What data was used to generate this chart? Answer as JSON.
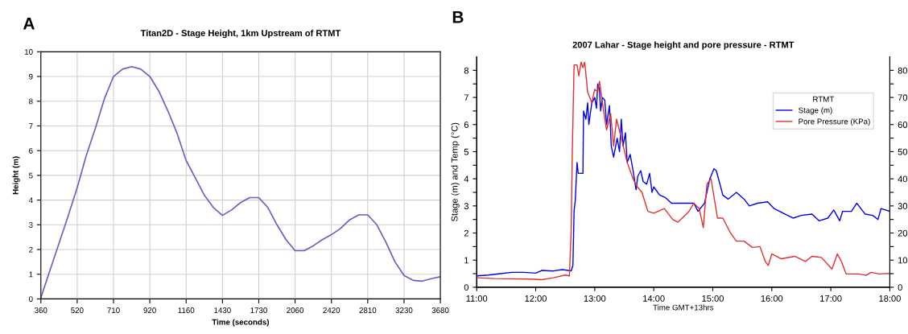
{
  "chart_data": [
    {
      "type": "line",
      "title": "Titan2D - Stage Height, 1km Upstream of RTMT",
      "xlabel": "Time (seconds)",
      "ylabel": "Height (m)",
      "annotations": [
        "A"
      ],
      "categories": [
        "360",
        null,
        null,
        null,
        "520",
        null,
        null,
        null,
        "710",
        null,
        null,
        null,
        "920",
        null,
        null,
        null,
        "1160",
        null,
        null,
        null,
        "1430",
        null,
        null,
        null,
        "1730",
        null,
        null,
        null,
        "2060",
        null,
        null,
        null,
        "2420",
        null,
        null,
        null,
        "2810",
        null,
        null,
        null,
        "3230",
        null,
        null,
        null,
        "3680"
      ],
      "series": [
        {
          "color": "#6262c4",
          "values": [
            0.05,
            1.15,
            2.25,
            3.35,
            4.5,
            5.8,
            6.9,
            8.1,
            9.0,
            9.3,
            9.4,
            9.3,
            9.0,
            8.4,
            7.6,
            6.7,
            5.6,
            4.9,
            4.2,
            3.7,
            3.38,
            3.6,
            3.9,
            4.1,
            4.1,
            3.7,
            3.0,
            2.4,
            1.95,
            1.95,
            2.15,
            2.4,
            2.6,
            2.85,
            3.2,
            3.4,
            3.4,
            3.0,
            2.3,
            1.5,
            0.95,
            0.75,
            0.72,
            0.82,
            0.9
          ]
        }
      ],
      "ylim": [
        0,
        10
      ],
      "yticks": [
        0,
        1,
        2,
        3,
        4,
        5,
        6,
        7,
        8,
        9,
        10
      ],
      "grid": true,
      "marker": "none"
    },
    {
      "type": "line",
      "title": "2007 Lahar - Stage height and pore pressure - RTMT",
      "xlabel": "Time GMT+13hrs",
      "ylabel": "Stage (m) and Temp (°C)",
      "annotations": [
        "B"
      ],
      "legend_title": "RTMT",
      "legend": "top right",
      "series": [
        {
          "name": "Stage (m)",
          "color": "#0000ee",
          "x": [
            11.0,
            11.2,
            11.4,
            11.6,
            11.8,
            12.0,
            12.1,
            12.3,
            12.45,
            12.55,
            12.6,
            12.63,
            12.65,
            12.67,
            12.7,
            12.72,
            12.8,
            12.81,
            12.85,
            12.88,
            12.9,
            12.95,
            13.0,
            13.03,
            13.05,
            13.08,
            13.1,
            13.13,
            13.17,
            13.2,
            13.25,
            13.28,
            13.32,
            13.38,
            13.42,
            13.45,
            13.48,
            13.52,
            13.55,
            13.6,
            13.65,
            13.7,
            13.73,
            13.78,
            13.82,
            13.88,
            13.93,
            13.97,
            14.0,
            14.1,
            14.2,
            14.3,
            14.4,
            14.5,
            14.68,
            14.75,
            14.86,
            14.95,
            15.02,
            15.06,
            15.17,
            15.26,
            15.4,
            15.53,
            15.62,
            15.76,
            15.93,
            16.04,
            16.22,
            16.36,
            16.5,
            16.68,
            16.8,
            16.95,
            17.05,
            17.15,
            17.2,
            17.35,
            17.44,
            17.58,
            17.71,
            17.8,
            17.85,
            18.0
          ],
          "values": [
            0.42,
            0.45,
            0.5,
            0.55,
            0.55,
            0.52,
            0.62,
            0.6,
            0.65,
            0.62,
            0.6,
            0.8,
            2.8,
            3.2,
            4.6,
            4.2,
            4.2,
            6.5,
            6.2,
            6.8,
            6.0,
            6.8,
            7.0,
            6.6,
            7.5,
            7.3,
            6.5,
            7.0,
            6.9,
            6.0,
            6.7,
            5.2,
            4.8,
            5.5,
            5.0,
            6.2,
            5.2,
            5.7,
            4.6,
            4.9,
            4.3,
            3.6,
            4.1,
            4.3,
            3.9,
            3.8,
            4.2,
            3.5,
            3.7,
            3.4,
            3.3,
            3.1,
            3.1,
            3.1,
            3.1,
            2.8,
            3.1,
            4.0,
            4.37,
            4.3,
            3.4,
            3.25,
            3.5,
            3.25,
            3.0,
            3.1,
            3.15,
            2.9,
            2.7,
            2.55,
            2.65,
            2.7,
            2.45,
            2.55,
            2.85,
            2.45,
            2.8,
            2.8,
            3.1,
            2.7,
            2.65,
            2.5,
            2.9,
            2.8
          ]
        },
        {
          "name": "Pore Pressure (KPa)",
          "color": "#e03030",
          "axis": "y2",
          "x": [
            11.0,
            11.3,
            11.9,
            12.1,
            12.3,
            12.5,
            12.57,
            12.6,
            12.62,
            12.65,
            12.7,
            12.73,
            12.77,
            12.8,
            12.83,
            12.88,
            12.95,
            13.0,
            13.05,
            13.08,
            13.15,
            13.2,
            13.27,
            13.32,
            13.37,
            13.45,
            13.55,
            13.65,
            13.72,
            13.8,
            13.9,
            14.0,
            14.18,
            14.32,
            14.41,
            14.59,
            14.68,
            14.77,
            14.84,
            14.9,
            14.97,
            15.08,
            15.17,
            15.3,
            15.4,
            15.53,
            15.67,
            15.8,
            15.89,
            15.94,
            16.0,
            16.16,
            16.39,
            16.57,
            16.68,
            16.84,
            17.02,
            17.11,
            17.18,
            17.26,
            17.47,
            17.6,
            17.68,
            17.82,
            18.0
          ],
          "values": [
            3.5,
            3.2,
            3.0,
            2.8,
            3.5,
            4.5,
            4.2,
            20,
            50,
            82,
            82,
            78,
            83,
            81,
            83,
            72,
            68,
            73,
            72,
            76,
            65,
            58,
            64,
            52,
            62,
            55,
            46,
            40,
            37,
            35,
            28,
            27.3,
            29,
            25,
            24,
            27.8,
            31,
            29,
            22,
            38,
            40,
            25.5,
            25.5,
            20,
            17,
            17,
            14.7,
            15,
            9.5,
            8,
            12.3,
            10.5,
            11.4,
            9.5,
            11.4,
            11,
            6.7,
            12.3,
            9.5,
            4.9,
            4.9,
            4.4,
            5.5,
            4.9,
            5.1
          ]
        }
      ],
      "xlim": [
        11,
        18
      ],
      "xticks": [
        {
          "value": 11,
          "label": "11:00"
        },
        {
          "value": 12,
          "label": "12:00"
        },
        {
          "value": 13,
          "label": "13:00"
        },
        {
          "value": 14,
          "label": "14:00"
        },
        {
          "value": 15,
          "label": "15:00"
        },
        {
          "value": 16,
          "label": "16:00"
        },
        {
          "value": 17,
          "label": "17:00"
        },
        {
          "value": 18,
          "label": "18:00"
        }
      ],
      "ylim": [
        0,
        8.5
      ],
      "yticks": [
        0,
        {
          "value": 0.5,
          "label": null
        },
        1,
        {
          "value": 1.5,
          "label": null
        },
        2,
        {
          "value": 2.5,
          "label": null
        },
        3,
        {
          "value": 3.5,
          "label": null
        },
        4,
        {
          "value": 4.5,
          "label": null
        },
        5,
        {
          "value": 5.5,
          "label": null
        },
        6,
        {
          "value": 6.5,
          "label": null
        },
        7,
        {
          "value": 7.5,
          "label": null
        },
        8
      ],
      "y2lim": [
        0,
        85
      ],
      "y2ticks": [
        0,
        {
          "value": 5,
          "label": null
        },
        10,
        {
          "value": 15,
          "label": null
        },
        20,
        {
          "value": 25,
          "label": null
        },
        30,
        {
          "value": 35,
          "label": null
        },
        40,
        {
          "value": 45,
          "label": null
        },
        50,
        {
          "value": 55,
          "label": null
        },
        60,
        {
          "value": 65,
          "label": null
        },
        70,
        {
          "value": 75,
          "label": null
        },
        80
      ],
      "grid": false,
      "marker": "none"
    }
  ]
}
